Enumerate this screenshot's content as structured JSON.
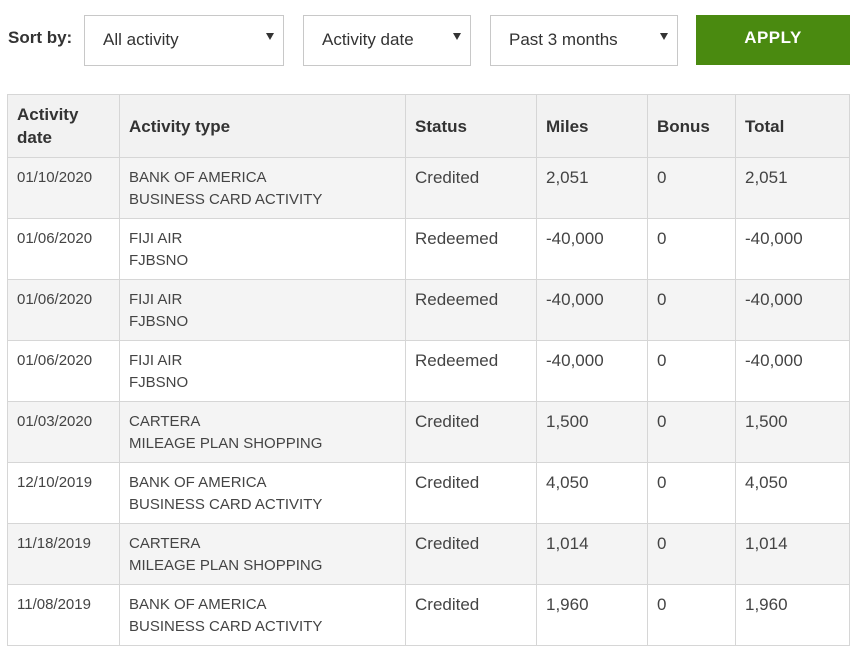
{
  "toolbar": {
    "sort_label": "Sort by:",
    "activity_filter": "All activity",
    "sort_field": "Activity date",
    "date_range": "Past 3 months",
    "apply_label": "APPLY",
    "apply_color": "#4a8a10"
  },
  "table": {
    "headers": {
      "date": "Activity date",
      "type": "Activity type",
      "status": "Status",
      "miles": "Miles",
      "bonus": "Bonus",
      "total": "Total"
    },
    "rows": [
      {
        "date": "01/10/2020",
        "type_line1": "BANK OF AMERICA",
        "type_line2": "BUSINESS CARD ACTIVITY",
        "status": "Credited",
        "miles": "2,051",
        "bonus": "0",
        "total": "2,051"
      },
      {
        "date": "01/06/2020",
        "type_line1": "FIJI AIR",
        "type_line2": "FJBSNO",
        "status": "Redeemed",
        "miles": "-40,000",
        "bonus": "0",
        "total": "-40,000"
      },
      {
        "date": "01/06/2020",
        "type_line1": "FIJI AIR",
        "type_line2": "FJBSNO",
        "status": "Redeemed",
        "miles": "-40,000",
        "bonus": "0",
        "total": "-40,000"
      },
      {
        "date": "01/06/2020",
        "type_line1": "FIJI AIR",
        "type_line2": "FJBSNO",
        "status": "Redeemed",
        "miles": "-40,000",
        "bonus": "0",
        "total": "-40,000"
      },
      {
        "date": "01/03/2020",
        "type_line1": "CARTERA",
        "type_line2": "MILEAGE PLAN SHOPPING",
        "status": "Credited",
        "miles": "1,500",
        "bonus": "0",
        "total": "1,500"
      },
      {
        "date": "12/10/2019",
        "type_line1": "BANK OF AMERICA",
        "type_line2": "BUSINESS CARD ACTIVITY",
        "status": "Credited",
        "miles": "4,050",
        "bonus": "0",
        "total": "4,050"
      },
      {
        "date": "11/18/2019",
        "type_line1": "CARTERA",
        "type_line2": "MILEAGE PLAN SHOPPING",
        "status": "Credited",
        "miles": "1,014",
        "bonus": "0",
        "total": "1,014"
      },
      {
        "date": "11/08/2019",
        "type_line1": "BANK OF AMERICA",
        "type_line2": "BUSINESS CARD ACTIVITY",
        "status": "Credited",
        "miles": "1,960",
        "bonus": "0",
        "total": "1,960"
      }
    ]
  }
}
